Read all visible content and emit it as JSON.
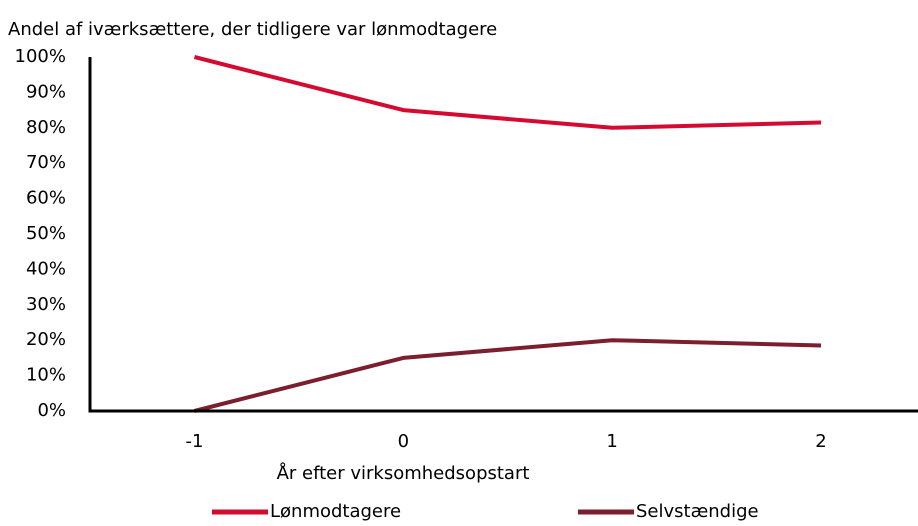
{
  "chart_data": {
    "type": "line",
    "title": "Andel af iværksættere, der tidligere var lønmodtagere",
    "x_label": "År efter virksomhedsopstart",
    "categories": [
      "-1",
      "0",
      "1",
      "2"
    ],
    "series": [
      {
        "name": "Lønmodtagere",
        "color": "#d50a30",
        "values": [
          100,
          85,
          80,
          81.5
        ]
      },
      {
        "name": "Selvstændige",
        "color": "#7b1e2e",
        "values": [
          0,
          15,
          20,
          18.5
        ]
      }
    ],
    "ylim": [
      0,
      100
    ],
    "yticks": [
      {
        "value": 0,
        "label": "0%"
      },
      {
        "value": 10,
        "label": "10%"
      },
      {
        "value": 20,
        "label": "20%"
      },
      {
        "value": 30,
        "label": "30%"
      },
      {
        "value": 40,
        "label": "40%"
      },
      {
        "value": 50,
        "label": "50%"
      },
      {
        "value": 60,
        "label": "60%"
      },
      {
        "value": 70,
        "label": "70%"
      },
      {
        "value": 80,
        "label": "80%"
      },
      {
        "value": 90,
        "label": "90%"
      },
      {
        "value": 100,
        "label": "100%"
      }
    ],
    "grid": false,
    "legend": "bottom"
  }
}
